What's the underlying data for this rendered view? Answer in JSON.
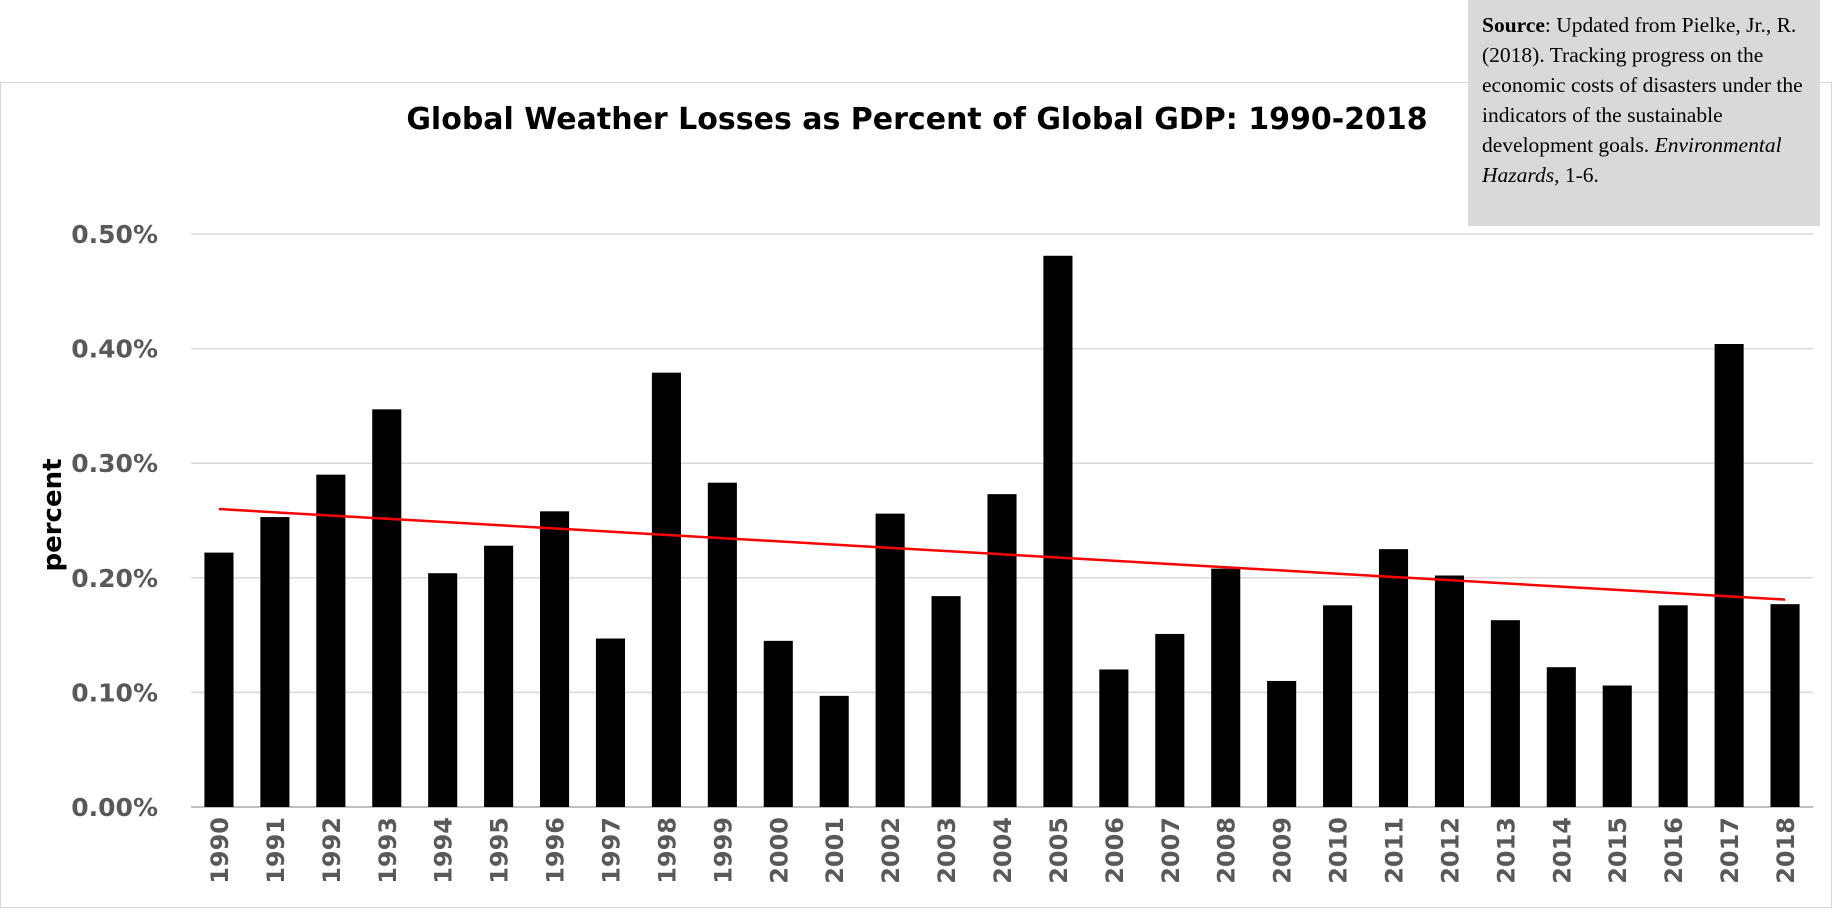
{
  "chart_data": {
    "type": "bar",
    "title": "Global Weather Losses as Percent of Global GDP: 1990-2018",
    "xlabel": "",
    "ylabel": "percent",
    "ylim": [
      0,
      0.5
    ],
    "yticks": [
      "0.00%",
      "0.10%",
      "0.20%",
      "0.30%",
      "0.40%",
      "0.50%"
    ],
    "ytick_values": [
      0,
      0.1,
      0.2,
      0.3,
      0.4,
      0.5
    ],
    "grid": true,
    "categories": [
      "1990",
      "1991",
      "1992",
      "1993",
      "1994",
      "1995",
      "1996",
      "1997",
      "1998",
      "1999",
      "2000",
      "2001",
      "2002",
      "2003",
      "2004",
      "2005",
      "2006",
      "2007",
      "2008",
      "2009",
      "2010",
      "2011",
      "2012",
      "2013",
      "2014",
      "2015",
      "2016",
      "2017",
      "2018"
    ],
    "series": [
      {
        "values": [
          0.222,
          0.253,
          0.29,
          0.347,
          0.204,
          0.228,
          0.258,
          0.147,
          0.379,
          0.283,
          0.145,
          0.097,
          0.256,
          0.184,
          0.273,
          0.481,
          0.12,
          0.151,
          0.208,
          0.11,
          0.176,
          0.225,
          0.202,
          0.163,
          0.122,
          0.106,
          0.176,
          0.404,
          0.177
        ],
        "color": "#000000"
      }
    ],
    "trendline": {
      "type": "linear",
      "start": 0.26,
      "end": 0.181,
      "color": "#ff0000"
    }
  },
  "source_note": {
    "label": "Source",
    "text_before_italic": ": Updated from Pielke, Jr., R. (2018). Tracking progress on the economic costs of disasters under the indicators of the sustainable development goals. ",
    "italic": "Environmental Hazards",
    "text_after_italic": ", 1-6."
  }
}
